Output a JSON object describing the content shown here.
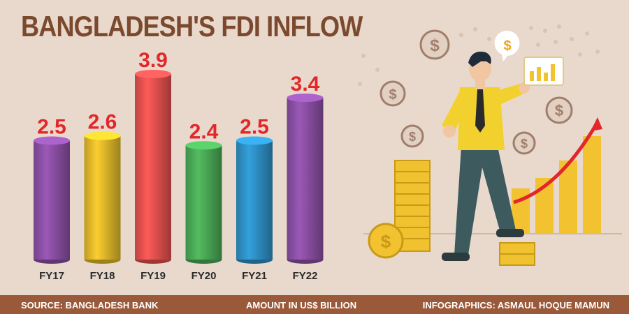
{
  "title": "BANGLADESH'S FDI INFLOW",
  "footer": {
    "source": "SOURCE: BANGLADESH BANK",
    "unit": "AMOUNT IN US$ BILLION",
    "credit": "INFOGRAPHICS: ASMAUL HOQUE MAMUN"
  },
  "colors": {
    "background": "#e9d9cc",
    "title": "#7b4a2e",
    "value_label": "#e3262a",
    "footer_bar": "#9a5a3a",
    "bars": [
      "#8a4fa3",
      "#e0b82a",
      "#e2504f",
      "#4aa956",
      "#2e8fc4",
      "#8a4fa3"
    ]
  },
  "illustration": {
    "description_icons": [
      "businessman-icon",
      "dollar-coin-icon",
      "coin-stack-icon",
      "rising-bar-chart-icon",
      "red-trend-arrow-icon"
    ],
    "coin_symbol": "$"
  },
  "chart_data": {
    "type": "bar",
    "categories": [
      "FY17",
      "FY18",
      "FY19",
      "FY20",
      "FY21",
      "FY22"
    ],
    "values": [
      2.5,
      2.6,
      3.9,
      2.4,
      2.5,
      3.4
    ],
    "title": "BANGLADESH'S FDI INFLOW",
    "ylabel": "",
    "unit": "AMOUNT IN US$ BILLION",
    "ylim": [
      0,
      3.9
    ],
    "grid": false,
    "legend": "none",
    "data_labels": true
  }
}
